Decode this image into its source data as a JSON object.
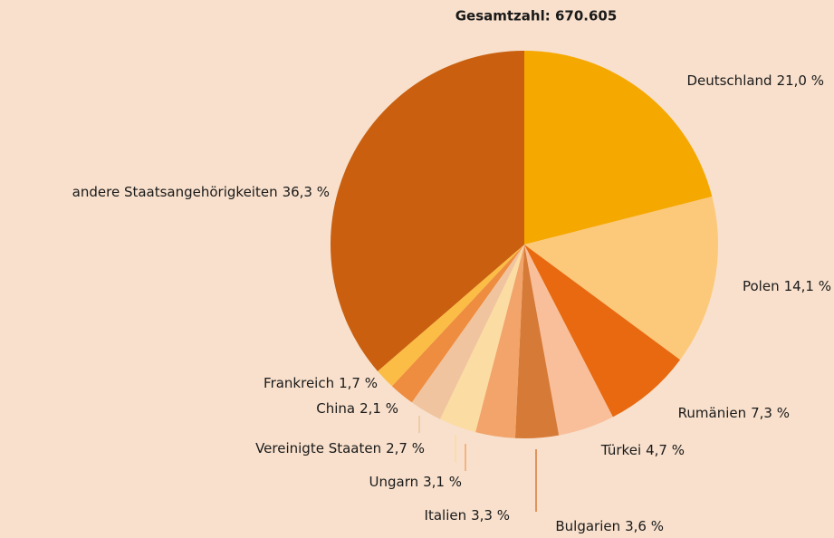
{
  "chart_data": {
    "type": "pie",
    "title": "Gesamtzahl: 670.605",
    "categories": [
      "Deutschland",
      "Polen",
      "Rumänien",
      "Türkei",
      "Bulgarien",
      "Italien",
      "Ungarn",
      "Vereinigte Staaten",
      "China",
      "Frankreich",
      "andere Staatsangehörigkeiten"
    ],
    "values": [
      21.0,
      14.1,
      7.3,
      4.7,
      3.6,
      3.3,
      3.1,
      2.7,
      2.1,
      1.7,
      36.3
    ],
    "value_labels": [
      "21,0 %",
      "14,1 %",
      "7,3 %",
      "4,7 %",
      "3,6 %",
      "3,3 %",
      "3,1 %",
      "2,7 %",
      "2,1 %",
      "1,7 %",
      "36,3 %"
    ],
    "colors": [
      "#f5a800",
      "#fcc97a",
      "#e8690f",
      "#f8bf9a",
      "#d67a37",
      "#f2a46a",
      "#fbdca3",
      "#f0c49f",
      "#ee8c3f",
      "#fbbd45",
      "#c95f0f"
    ]
  }
}
